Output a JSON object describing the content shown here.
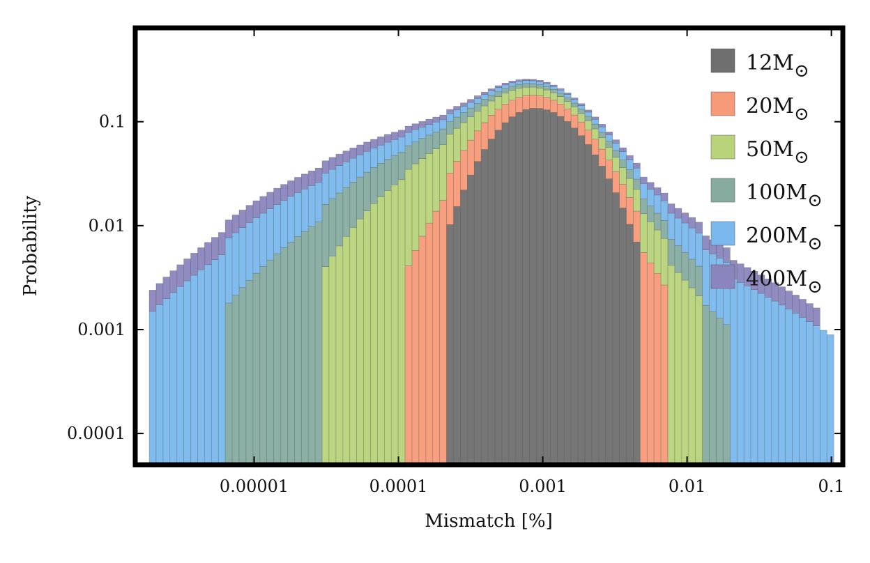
{
  "chart_data": {
    "type": "bar",
    "title": "",
    "xlabel": "Mismatch [%]",
    "ylabel": "Probability",
    "x_scale": "log",
    "y_scale": "log",
    "xlim": [
      1.5e-06,
      0.12
    ],
    "ylim": [
      5e-05,
      0.8
    ],
    "x_ticks": [
      {
        "value": 1e-05,
        "label": "0.00001"
      },
      {
        "value": 0.0001,
        "label": "0.0001"
      },
      {
        "value": 0.001,
        "label": "0.001"
      },
      {
        "value": 0.01,
        "label": "0.01"
      },
      {
        "value": 0.1,
        "label": "0.1"
      }
    ],
    "y_ticks": [
      {
        "value": 0.0001,
        "label": "0.0001"
      },
      {
        "value": 0.001,
        "label": "0.001"
      },
      {
        "value": 0.01,
        "label": "0.01"
      },
      {
        "value": 0.1,
        "label": "0.1"
      }
    ],
    "grid": false,
    "legend_position": "top-right",
    "stacked": true,
    "bin_log10_edges": {
      "start": -5.775,
      "end": -0.983,
      "count": 100
    },
    "series": [
      {
        "name": "12M",
        "name_subscript": "⊙",
        "color": "#6f6f6f",
        "log10_peak": -3.05,
        "log10_left": -3.65,
        "log10_right": -2.33,
        "peak_value": 0.135
      },
      {
        "name": "20M",
        "name_subscript": "⊙",
        "color": "#f79a78",
        "log10_peak": -3.25,
        "log10_left": -3.95,
        "log10_right": -2.12,
        "peak_value": 0.05
      },
      {
        "name": "50M",
        "name_subscript": "⊙",
        "color": "#b8d37a",
        "log10_peak": -3.55,
        "log10_left": -4.55,
        "log10_right": -1.9,
        "peak_value": 0.045
      },
      {
        "name": "100M",
        "name_subscript": "⊙",
        "color": "#86aca0",
        "log10_peak": -3.75,
        "log10_left": -5.18,
        "log10_right": -1.72,
        "peak_value": 0.025
      },
      {
        "name": "200M",
        "name_subscript": "⊙",
        "color": "#7ab8ee",
        "log10_peak": -4.0,
        "log10_left": -5.72,
        "log10_right": -1.0,
        "peak_value": 0.02
      },
      {
        "name": "400M",
        "name_subscript": "⊙",
        "color": "#8a85bd",
        "log10_peak": -4.1,
        "log10_left": -5.72,
        "log10_right": -1.1,
        "peak_value": 0.012
      }
    ]
  }
}
